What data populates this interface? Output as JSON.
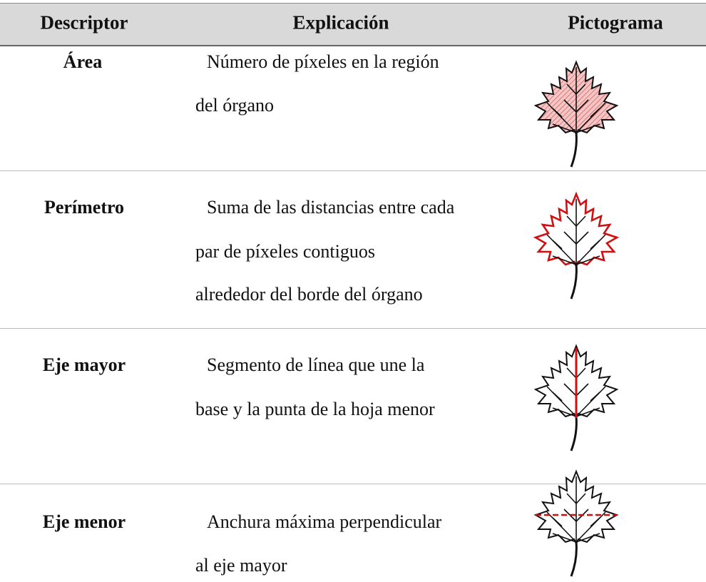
{
  "header": [
    "Descriptor",
    "Explicación",
    "Pictograma"
  ],
  "rows": [
    {
      "descriptor": "Área",
      "explanation": [
        "Número de píxeles en la región",
        "del órgano"
      ]
    },
    {
      "descriptor": "Perímetro",
      "explanation": [
        "Suma de las distancias entre cada",
        "par de píxeles contiguos",
        "alrededor del borde del órgano"
      ]
    },
    {
      "descriptor": "Eje mayor",
      "explanation": [
        "Segmento de línea que une la",
        "base y la punta de la hoja menor"
      ]
    },
    {
      "descriptor": "Eje menor",
      "explanation": [
        "Anchura máxima perpendicular",
        "al eje mayor"
      ]
    }
  ]
}
